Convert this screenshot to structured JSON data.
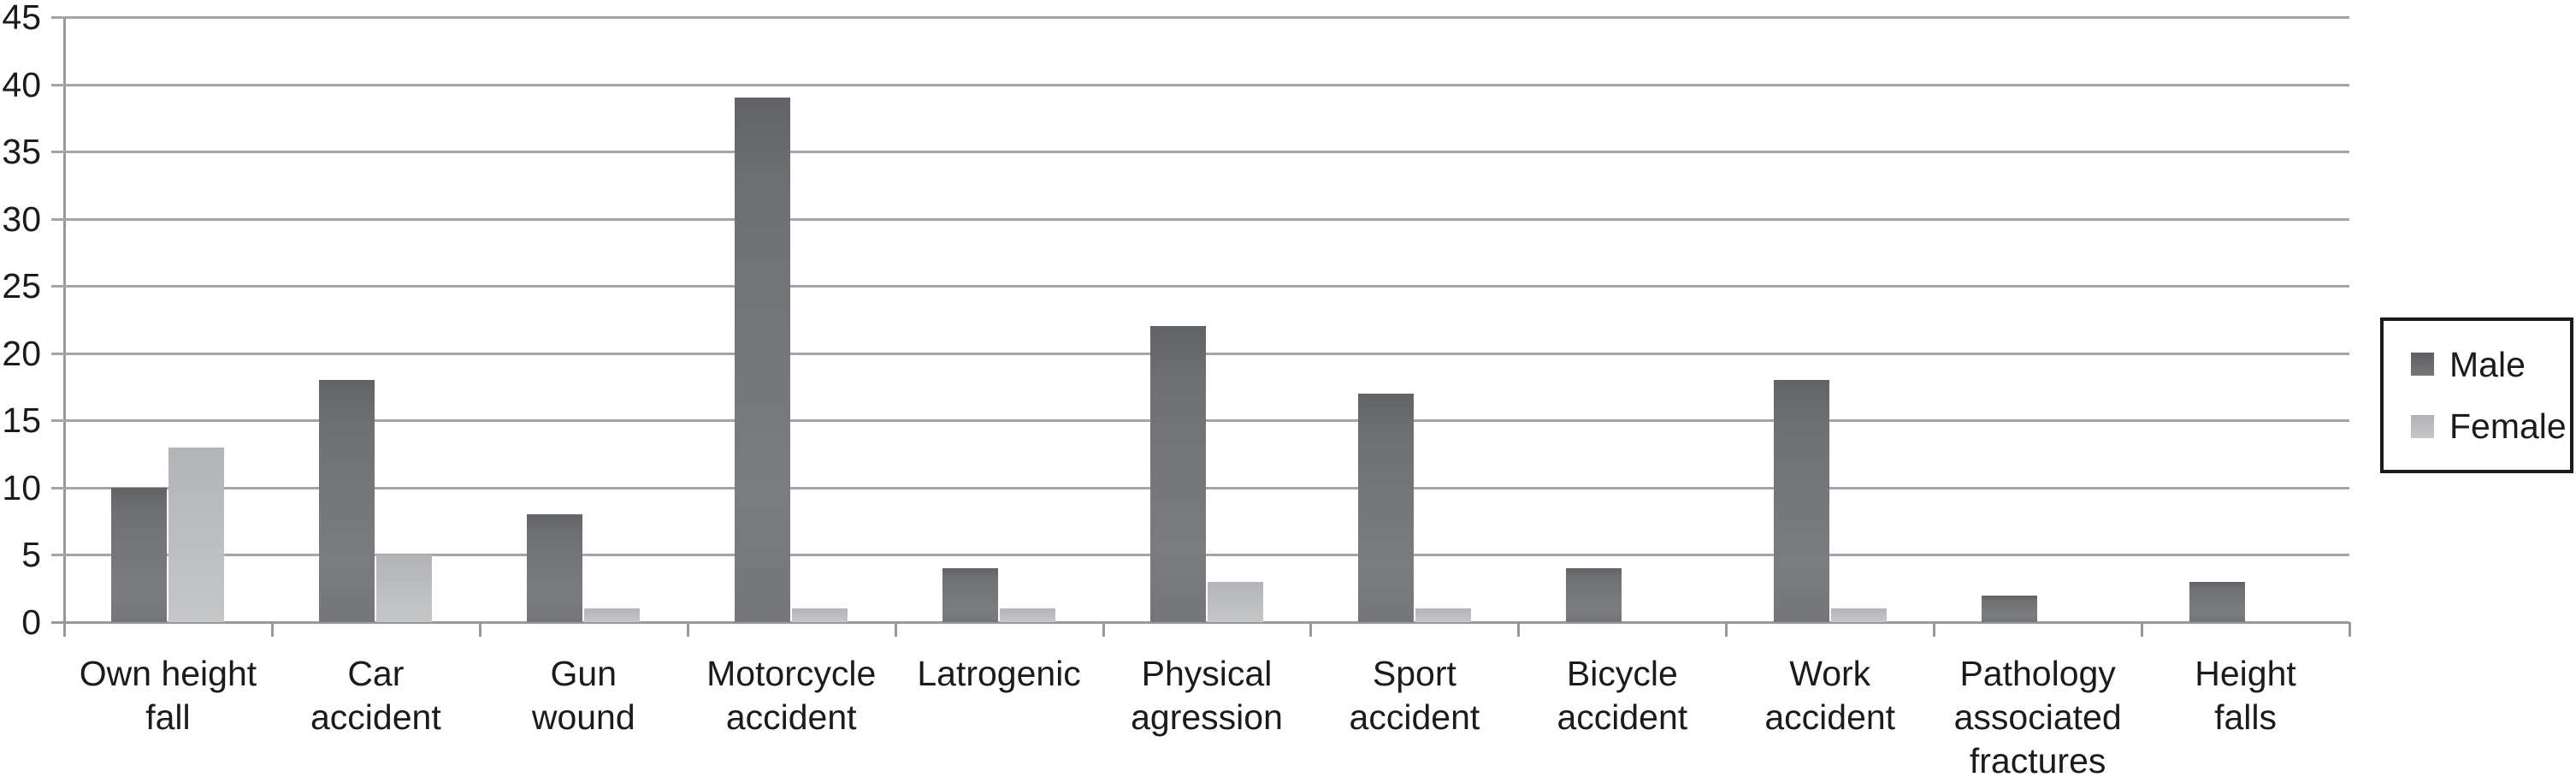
{
  "chart_data": {
    "type": "bar",
    "title": "",
    "xlabel": "",
    "ylabel": "",
    "categories": [
      {
        "label": "Own height fall",
        "lines": [
          "Own height",
          "fall"
        ]
      },
      {
        "label": "Car accident",
        "lines": [
          "Car",
          "accident"
        ]
      },
      {
        "label": "Gun wound",
        "lines": [
          "Gun",
          "wound"
        ]
      },
      {
        "label": "Motorcycle accident",
        "lines": [
          "Motorcycle",
          "accident"
        ]
      },
      {
        "label": "Latrogenic",
        "lines": [
          "Latrogenic"
        ]
      },
      {
        "label": "Physical agression",
        "lines": [
          "Physical",
          "agression"
        ]
      },
      {
        "label": "Sport accident",
        "lines": [
          "Sport",
          "accident"
        ]
      },
      {
        "label": "Bicycle accident",
        "lines": [
          "Bicycle",
          "accident"
        ]
      },
      {
        "label": "Work accident",
        "lines": [
          "Work",
          "accident"
        ]
      },
      {
        "label": "Pathology associated fractures",
        "lines": [
          "Pathology",
          "associated",
          "fractures"
        ]
      },
      {
        "label": "Height falls",
        "lines": [
          "Height",
          "falls"
        ]
      }
    ],
    "series": [
      {
        "name": "Male",
        "values": [
          10,
          18,
          8,
          39,
          4,
          22,
          17,
          4,
          18,
          2,
          3
        ],
        "color": "#6b6d70"
      },
      {
        "name": "Female",
        "values": [
          13,
          5,
          1,
          1,
          1,
          3,
          1,
          0,
          1,
          0,
          0
        ],
        "color": "#bcbec1"
      }
    ],
    "ylim": [
      0,
      45
    ],
    "ytick_step": 5,
    "yticks": [
      "0",
      "5",
      "10",
      "15",
      "20",
      "25",
      "30",
      "35",
      "40",
      "45"
    ],
    "grid": "horizontal",
    "legend_position": "right",
    "colors": {
      "gridline": "#a3a5a8",
      "axis": "#96989b",
      "text": "#1b1b1b",
      "background": "#ffffff",
      "legend_border": "#1b1b1b"
    }
  }
}
